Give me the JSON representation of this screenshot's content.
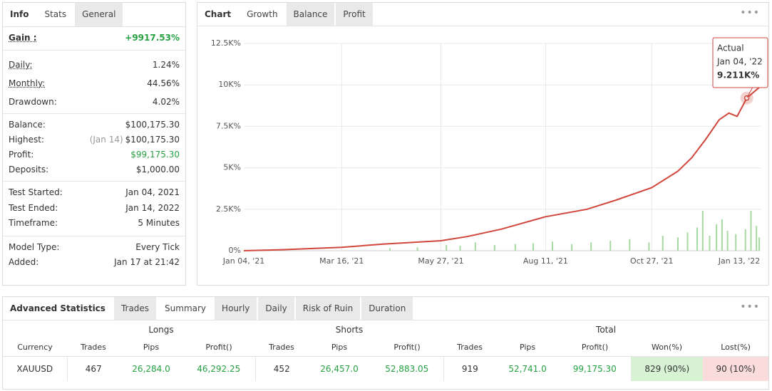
{
  "left_panel": {
    "tabs": [
      "Info",
      "Stats",
      "General"
    ],
    "stats": [
      [
        {
          "label": "Gain :",
          "value": "+9917.53%"
        }
      ],
      [
        {
          "label": "Daily:",
          "value": "1.24%"
        },
        {
          "label": "Monthly:",
          "value": "44.56%"
        },
        {
          "label": "Drawdown:",
          "value": "4.02%"
        }
      ],
      [
        {
          "label": "Balance:",
          "value": "$100,175.30"
        },
        {
          "label": "Highest:",
          "note": "(Jan 14)",
          "value": "$100,175.30"
        },
        {
          "label": "Profit:",
          "value": "$99,175.30"
        },
        {
          "label": "Deposits:",
          "value": "$1,000.00"
        }
      ],
      [
        {
          "label": "Test Started:",
          "value": "Jan 04, 2021"
        },
        {
          "label": "Test Ended:",
          "value": "Jan 14, 2022"
        },
        {
          "label": "Timeframe:",
          "value": "5 Minutes"
        }
      ],
      [
        {
          "label": "Model Type:",
          "value": "Every Tick"
        },
        {
          "label": "Added:",
          "value": "Jan 17 at 21:42"
        }
      ]
    ]
  },
  "chart_panel": {
    "tabs": [
      "Chart",
      "Growth",
      "Balance",
      "Profit"
    ]
  },
  "chart_data": {
    "type": "line",
    "xlim": [
      "Jan 04, '21",
      "Jan 14, '22"
    ],
    "xticks": [
      "Jan 04, '21",
      "Mar 16, '21",
      "May 27, '21",
      "Aug 11, '21",
      "Oct 27, '21",
      "Jan 13, '22"
    ],
    "ylim": [
      0,
      12500
    ],
    "yticks": [
      {
        "value": 0,
        "label": "0%"
      },
      {
        "value": 2500,
        "label": "2.5K%"
      },
      {
        "value": 5000,
        "label": "5K%"
      },
      {
        "value": 7500,
        "label": "7.5K%"
      },
      {
        "value": 10000,
        "label": "10K%"
      },
      {
        "value": 12500,
        "label": "12.5K%"
      }
    ],
    "grid": true,
    "series": [
      {
        "type": "bar",
        "color": "#a6d9a1",
        "x": [
          "Apr 20, '21",
          "May 10, '21",
          "May 31, '21",
          "Jun 10, '21",
          "Jun 21, '21",
          "Jul 05, '21",
          "Jul 20, '21",
          "Aug 02, '21",
          "Aug 16, '21",
          "Aug 30, '21",
          "Sep 13, '21",
          "Sep 27, '21",
          "Oct 11, '21",
          "Oct 25, '21",
          "Nov 04, '21",
          "Nov 15, '21",
          "Nov 22, '21",
          "Nov 29, '21",
          "Dec 03, '21",
          "Dec 08, '21",
          "Dec 13, '21",
          "Dec 17, '21",
          "Dec 21, '21",
          "Dec 27, '21",
          "Jan 03, '22",
          "Jan 07, '22",
          "Jan 11, '22",
          "Jan 13, '22"
        ],
        "values": [
          150,
          200,
          350,
          300,
          500,
          350,
          400,
          450,
          550,
          400,
          500,
          600,
          700,
          500,
          900,
          800,
          1100,
          1400,
          2400,
          900,
          1600,
          1900,
          1200,
          1000,
          1300,
          2400,
          1500,
          800
        ]
      },
      {
        "type": "line",
        "color": "#d0463b",
        "x": [
          "Jan 04, '21",
          "Feb 01, '21",
          "Mar 16, '21",
          "Apr 15, '21",
          "May 27, '21",
          "Jun 15, '21",
          "Jul 10, '21",
          "Aug 11, '21",
          "Sep 10, '21",
          "Oct 01, '21",
          "Oct 27, '21",
          "Nov 15, '21",
          "Nov 25, '21",
          "Dec 05, '21",
          "Dec 15, '21",
          "Dec 22, '21",
          "Dec 28, '21",
          "Jan 04, '22",
          "Jan 14, '22"
        ],
        "values": [
          0,
          60,
          200,
          400,
          600,
          850,
          1300,
          2050,
          2500,
          3050,
          3800,
          4800,
          5600,
          6700,
          7900,
          8300,
          8100,
          9211,
          9917.53
        ]
      }
    ],
    "tooltip": {
      "title": "Actual",
      "x": "Jan 04, '22",
      "value": 9211,
      "label": "9.211K%"
    }
  },
  "advanced_statistics": {
    "title": "Advanced Statistics",
    "tabs": [
      "Trades",
      "Summary",
      "Hourly",
      "Daily",
      "Risk of Ruin",
      "Duration"
    ],
    "groups": [
      "Longs",
      "Shorts",
      "Total"
    ],
    "columns": [
      "Currency",
      "Trades",
      "Pips",
      "Profit()",
      "Trades",
      "Pips",
      "Profit()",
      "Trades",
      "Pips",
      "Profit()",
      "Won(%)",
      "Lost(%)"
    ],
    "rows": [
      [
        "XAUUSD",
        "467",
        "26,284.0",
        "46,292.25",
        "452",
        "26,457.0",
        "52,883.05",
        "919",
        "52,741.0",
        "99,175.30",
        "829 (90%)",
        "90 (10%)"
      ]
    ]
  }
}
